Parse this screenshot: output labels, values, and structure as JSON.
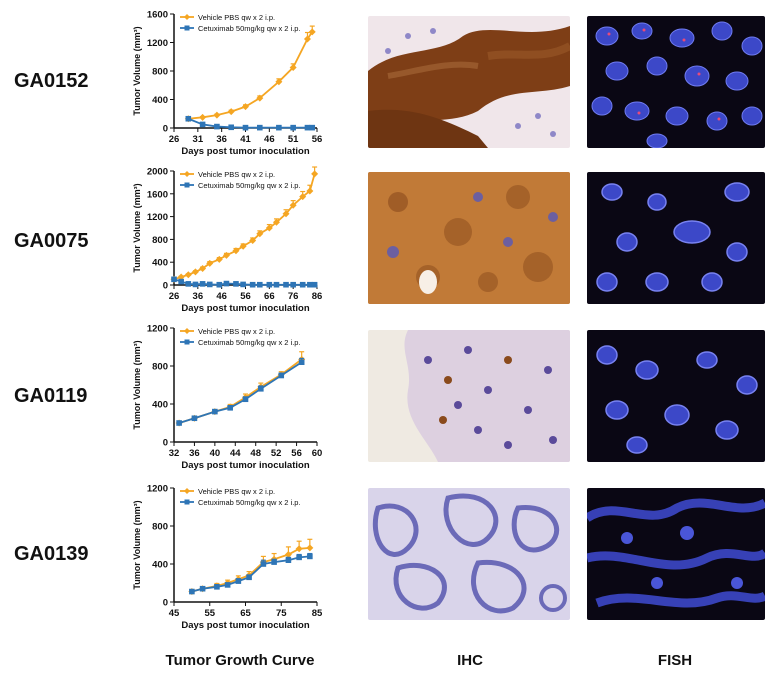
{
  "rows": [
    {
      "label": "GA0152"
    },
    {
      "label": "GA0075"
    },
    {
      "label": "GA0119"
    },
    {
      "label": "GA0139"
    }
  ],
  "column_titles": {
    "curve": "Tumor Growth Curve",
    "ihc": "IHC",
    "fish": "FISH"
  },
  "colors": {
    "vehicle": "#f5a623",
    "cetuximab": "#2e75b6",
    "ihc_brown": "#8a4a1c",
    "ihc_pale": "#ece3ef",
    "ihc_blue": "#6b6ab8",
    "fish_bg": "#0a0714",
    "fish_cell": "#3c48c8"
  },
  "chart_data": [
    {
      "type": "line",
      "xlabel": "Days post tumor inoculation",
      "ylabel": "Tumor Volume (mm³)",
      "xlim": [
        26,
        56
      ],
      "ylim": [
        0,
        1600
      ],
      "xticks": [
        26,
        31,
        36,
        41,
        46,
        51,
        56
      ],
      "yticks": [
        0,
        400,
        800,
        1200,
        1600
      ],
      "series": [
        {
          "name": "Vehicle PBS qw x 2 i.p.",
          "x": [
            29,
            32,
            35,
            38,
            41,
            44,
            48,
            51,
            54,
            55
          ],
          "y": [
            130,
            150,
            180,
            230,
            300,
            420,
            650,
            850,
            1250,
            1350
          ],
          "err": [
            10,
            10,
            15,
            20,
            25,
            30,
            40,
            50,
            90,
            80
          ]
        },
        {
          "name": "Cetuximab 50mg/kg qw x 2 i.p.",
          "x": [
            29,
            32,
            35,
            38,
            41,
            44,
            48,
            51,
            54,
            55
          ],
          "y": [
            130,
            50,
            20,
            10,
            5,
            5,
            5,
            5,
            5,
            5
          ],
          "err": [
            10,
            8,
            5,
            3,
            2,
            2,
            2,
            2,
            2,
            2
          ]
        }
      ]
    },
    {
      "type": "line",
      "xlabel": "Days post tumor inoculation",
      "ylabel": "Tumor Volume (mm³)",
      "xlim": [
        26,
        86
      ],
      "ylim": [
        0,
        2000
      ],
      "xticks": [
        26,
        36,
        46,
        56,
        66,
        76,
        86
      ],
      "yticks": [
        0,
        400,
        800,
        1200,
        1600,
        2000
      ],
      "series": [
        {
          "name": "Vehicle PBS qw x 2 i.p.",
          "x": [
            26,
            29,
            32,
            35,
            38,
            41,
            45,
            48,
            52,
            55,
            59,
            62,
            66,
            69,
            73,
            76,
            80,
            83,
            85
          ],
          "y": [
            100,
            140,
            180,
            230,
            290,
            380,
            450,
            520,
            600,
            680,
            780,
            900,
            1000,
            1100,
            1250,
            1400,
            1550,
            1650,
            1950
          ],
          "err": [
            10,
            12,
            15,
            20,
            25,
            30,
            30,
            35,
            40,
            40,
            45,
            50,
            60,
            60,
            70,
            80,
            90,
            100,
            120
          ]
        },
        {
          "name": "Cetuximab 50mg/kg qw x 2 i.p.",
          "x": [
            26,
            29,
            32,
            35,
            38,
            41,
            45,
            48,
            52,
            55,
            59,
            62,
            66,
            69,
            73,
            76,
            80,
            83,
            85
          ],
          "y": [
            100,
            60,
            20,
            10,
            20,
            10,
            5,
            25,
            20,
            10,
            5,
            5,
            5,
            5,
            5,
            5,
            5,
            5,
            5
          ],
          "err": [
            10,
            8,
            5,
            5,
            10,
            5,
            3,
            12,
            10,
            5,
            2,
            2,
            2,
            2,
            2,
            2,
            2,
            2,
            2
          ]
        }
      ]
    },
    {
      "type": "line",
      "xlabel": "Days post tumor inoculation",
      "ylabel": "Tumor Volume (mm³)",
      "xlim": [
        32,
        60
      ],
      "ylim": [
        0,
        1200
      ],
      "xticks": [
        32,
        36,
        40,
        44,
        48,
        52,
        56,
        60
      ],
      "yticks": [
        0,
        400,
        800,
        1200
      ],
      "series": [
        {
          "name": "Vehicle PBS qw x 2 i.p.",
          "x": [
            33,
            36,
            40,
            43,
            46,
            49,
            53,
            57
          ],
          "y": [
            200,
            250,
            320,
            370,
            470,
            580,
            710,
            870
          ],
          "err": [
            15,
            15,
            20,
            25,
            35,
            40,
            30,
            80
          ]
        },
        {
          "name": "Cetuximab 50mg/kg qw x 2 i.p.",
          "x": [
            33,
            36,
            40,
            43,
            46,
            49,
            53,
            57
          ],
          "y": [
            200,
            250,
            320,
            360,
            450,
            560,
            700,
            840
          ],
          "err": [
            15,
            15,
            20,
            20,
            25,
            30,
            25,
            40
          ]
        }
      ]
    },
    {
      "type": "line",
      "xlabel": "Days post tumor inoculation",
      "ylabel": "Tumor Volume (mm³)",
      "xlim": [
        45,
        85
      ],
      "ylim": [
        0,
        1200
      ],
      "xticks": [
        45,
        55,
        65,
        75,
        85
      ],
      "yticks": [
        0,
        400,
        800,
        1200
      ],
      "series": [
        {
          "name": "Vehicle PBS qw x 2 i.p.",
          "x": [
            50,
            53,
            57,
            60,
            63,
            66,
            70,
            73,
            77,
            80,
            83
          ],
          "y": [
            110,
            140,
            170,
            200,
            240,
            280,
            420,
            450,
            500,
            560,
            570
          ],
          "err": [
            15,
            20,
            25,
            30,
            35,
            40,
            60,
            60,
            80,
            80,
            90
          ]
        },
        {
          "name": "Cetuximab 50mg/kg qw x 2 i.p.",
          "x": [
            50,
            53,
            57,
            60,
            63,
            66,
            70,
            73,
            77,
            80,
            83
          ],
          "y": [
            110,
            140,
            160,
            180,
            220,
            260,
            400,
            420,
            440,
            470,
            480
          ],
          "err": [
            15,
            15,
            20,
            20,
            25,
            25,
            40,
            30,
            30,
            30,
            30
          ]
        }
      ]
    }
  ]
}
